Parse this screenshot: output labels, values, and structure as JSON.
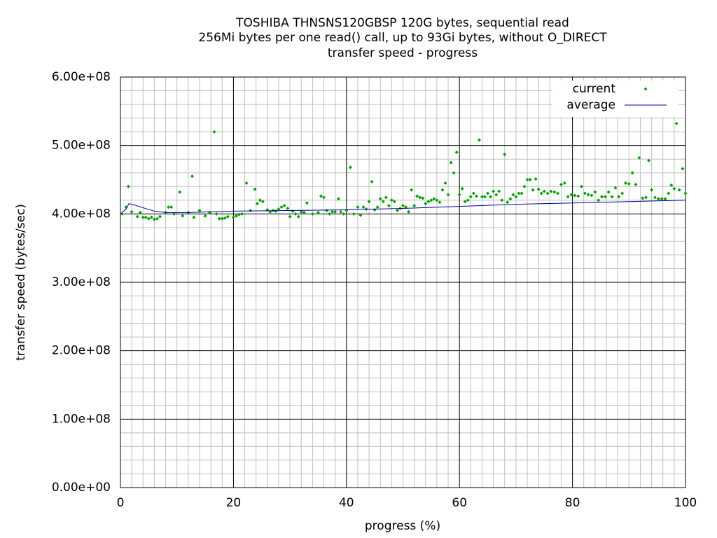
{
  "chart_data": {
    "type": "scatter",
    "title": [
      "TOSHIBA THNSNS120GBSP 120G bytes, sequential read",
      "256Mi bytes per one read() call, up to 93Gi bytes, without O_DIRECT",
      "transfer speed - progress"
    ],
    "x_label": "progress (%)",
    "y_label": "transfer speed (bytes/sec)",
    "xlim": [
      0,
      100
    ],
    "xticks": [
      0,
      20,
      40,
      60,
      80,
      100
    ],
    "ylim": [
      0,
      600000000.0
    ],
    "yticks": [
      {
        "value": 0,
        "label": "0.00e+00"
      },
      {
        "value": 100000000.0,
        "label": "1.00e+08"
      },
      {
        "value": 200000000.0,
        "label": "2.00e+08"
      },
      {
        "value": 300000000.0,
        "label": "3.00e+08"
      },
      {
        "value": 400000000.0,
        "label": "4.00e+08"
      },
      {
        "value": 500000000.0,
        "label": "5.00e+08"
      },
      {
        "value": 600000000.0,
        "label": "6.00e+08"
      }
    ],
    "grid": true,
    "minor_grid": {
      "x": 10,
      "y": 5
    },
    "legend": "top-right",
    "series": [
      {
        "name": "current",
        "color": "#00a000",
        "style": "points",
        "x": [
          0.3,
          1,
          1.4,
          2,
          3,
          3.5,
          4,
          4.5,
          5,
          5.5,
          6,
          6.5,
          7,
          8,
          8.5,
          9,
          9.5,
          10.5,
          11,
          12,
          12.7,
          13,
          14,
          15,
          15.8,
          16.6,
          17,
          17.5,
          18,
          18.5,
          19,
          20,
          20.5,
          21,
          21.5,
          22.3,
          23,
          23.8,
          24.2,
          24.7,
          25.2,
          26,
          26.5,
          27,
          27.5,
          28,
          28.5,
          29,
          29.6,
          30,
          30.5,
          31,
          31.5,
          32,
          32.5,
          33,
          34,
          35,
          35.5,
          36,
          36.5,
          37,
          37.5,
          38,
          38.6,
          39,
          39.5,
          40,
          40.7,
          41.3,
          42,
          42.5,
          43,
          43.5,
          44,
          44.5,
          45,
          45.5,
          46,
          46.5,
          47,
          47.5,
          48,
          48.5,
          49,
          49.5,
          50,
          50.5,
          51,
          51.5,
          52,
          52.5,
          53,
          53.5,
          54,
          54.5,
          55,
          55.5,
          56,
          56.5,
          57,
          57.5,
          58,
          58.5,
          59,
          59.5,
          60,
          60.5,
          61,
          61.5,
          62,
          62.5,
          63,
          63.5,
          64,
          64.5,
          65,
          65.5,
          66,
          66.5,
          67,
          67.5,
          68,
          68.5,
          69,
          69.5,
          70,
          70.5,
          71,
          71.5,
          72,
          72.5,
          73,
          73.5,
          74,
          74.5,
          75,
          75.6,
          76.2,
          76.8,
          77.4,
          78,
          78.6,
          79.2,
          79.8,
          80.4,
          81,
          81.6,
          82.2,
          82.8,
          83.4,
          84,
          84.6,
          85.2,
          85.8,
          86.4,
          87,
          87.6,
          88.2,
          88.8,
          89.4,
          90,
          90.6,
          91.2,
          91.8,
          92.4,
          93,
          93.5,
          94,
          94.6,
          95.2,
          95.8,
          96.4,
          97,
          97.5,
          98,
          98.4,
          98.9,
          99.5,
          100
        ],
        "values": [
          400000000.0,
          410000000.0,
          440000000.0,
          403000000.0,
          396000000.0,
          402000000.0,
          395000000.0,
          395000000.0,
          393000000.0,
          395000000.0,
          392000000.0,
          393000000.0,
          396000000.0,
          402000000.0,
          410000000.0,
          410000000.0,
          400000000.0,
          432000000.0,
          397000000.0,
          402000000.0,
          455000000.0,
          395000000.0,
          405000000.0,
          397000000.0,
          402000000.0,
          520000000.0,
          400000000.0,
          393000000.0,
          393000000.0,
          394000000.0,
          396000000.0,
          395000000.0,
          397000000.0,
          399000000.0,
          400000000.0,
          445000000.0,
          405000000.0,
          436000000.0,
          415000000.0,
          420000000.0,
          418000000.0,
          406000000.0,
          403000000.0,
          405000000.0,
          404000000.0,
          407000000.0,
          410000000.0,
          412000000.0,
          408000000.0,
          396000000.0,
          404000000.0,
          400000000.0,
          396000000.0,
          403000000.0,
          402000000.0,
          416000000.0,
          400000000.0,
          402000000.0,
          426000000.0,
          424000000.0,
          405000000.0,
          400000000.0,
          403000000.0,
          403000000.0,
          422000000.0,
          403000000.0,
          400000000.0,
          405000000.0,
          468000000.0,
          400000000.0,
          410000000.0,
          398000000.0,
          410000000.0,
          407000000.0,
          418000000.0,
          447000000.0,
          406000000.0,
          410000000.0,
          422000000.0,
          418000000.0,
          424000000.0,
          412000000.0,
          420000000.0,
          418000000.0,
          405000000.0,
          408000000.0,
          412000000.0,
          410000000.0,
          403000000.0,
          435000000.0,
          412000000.0,
          426000000.0,
          424000000.0,
          423000000.0,
          415000000.0,
          418000000.0,
          420000000.0,
          422000000.0,
          420000000.0,
          417000000.0,
          435000000.0,
          445000000.0,
          428000000.0,
          475000000.0,
          460000000.0,
          490000000.0,
          428000000.0,
          437000000.0,
          418000000.0,
          420000000.0,
          425000000.0,
          430000000.0,
          426000000.0,
          508000000.0,
          425000000.0,
          425000000.0,
          430000000.0,
          425000000.0,
          433000000.0,
          428000000.0,
          433000000.0,
          420000000.0,
          487000000.0,
          417000000.0,
          422000000.0,
          428000000.0,
          425000000.0,
          430000000.0,
          430000000.0,
          440000000.0,
          450000000.0,
          450000000.0,
          435000000.0,
          451000000.0,
          436000000.0,
          430000000.0,
          433000000.0,
          430000000.0,
          433000000.0,
          432000000.0,
          430000000.0,
          443000000.0,
          445000000.0,
          425000000.0,
          428000000.0,
          427000000.0,
          426000000.0,
          440000000.0,
          430000000.0,
          428000000.0,
          427000000.0,
          432000000.0,
          420000000.0,
          425000000.0,
          425000000.0,
          432000000.0,
          425000000.0,
          438000000.0,
          425000000.0,
          430000000.0,
          445000000.0,
          444000000.0,
          460000000.0,
          443000000.0,
          482000000.0,
          423000000.0,
          424000000.0,
          478000000.0,
          435000000.0,
          424000000.0,
          422000000.0,
          422000000.0,
          422000000.0,
          430000000.0,
          442000000.0,
          437000000.0,
          532000000.0,
          435000000.0,
          466000000.0,
          430000000.0
        ]
      },
      {
        "name": "average",
        "color": "#00009a",
        "style": "line",
        "x": [
          0,
          1,
          1.5,
          2.5,
          4,
          6,
          8,
          12,
          16,
          20,
          30,
          40,
          50,
          60,
          70,
          80,
          90,
          100
        ],
        "values": [
          400000000.0,
          407000000.0,
          415000000.0,
          413000000.0,
          409000000.0,
          404000000.0,
          402000000.0,
          402000000.0,
          403000000.0,
          404000000.0,
          405000000.0,
          406000000.0,
          408000000.0,
          411000000.0,
          414000000.0,
          416000000.0,
          418000000.0,
          420000000.0
        ]
      }
    ]
  }
}
